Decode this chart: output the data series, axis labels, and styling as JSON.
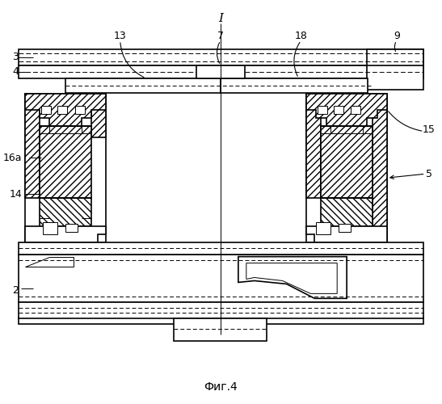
{
  "fig_label": "Фиг.4",
  "bg_color": "#ffffff",
  "lc": "#000000",
  "lw_thin": 0.7,
  "lw_main": 1.2,
  "lw_thick": 1.8
}
